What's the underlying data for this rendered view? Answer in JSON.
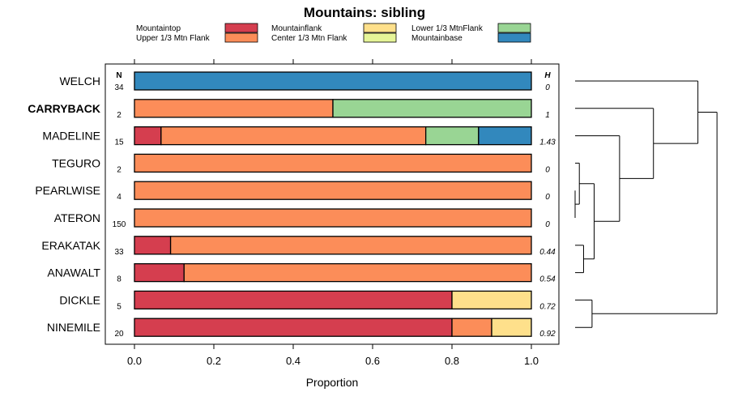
{
  "chart_data": {
    "type": "bar",
    "orientation": "horizontal",
    "stacked": true,
    "title": "Mountains: sibling",
    "xlabel": "Proportion",
    "xlim": [
      0,
      1
    ],
    "xticks": [
      "0.0",
      "0.2",
      "0.4",
      "0.6",
      "0.8",
      "1.0"
    ],
    "n_header": "N",
    "h_header": "H",
    "legend": [
      {
        "name": "Mountaintop",
        "color": "#d53e4f"
      },
      {
        "name": "Upper 1/3 Mtn Flank",
        "color": "#fc8d59"
      },
      {
        "name": "Mountainflank",
        "color": "#fee08b"
      },
      {
        "name": "Center 1/3 Mtn Flank",
        "color": "#e6f598"
      },
      {
        "name": "Lower 1/3 MtnFlank",
        "color": "#99d594"
      },
      {
        "name": "Mountainbase",
        "color": "#3288bd"
      }
    ],
    "categories": [
      "WELCH",
      "CARRYBACK",
      "MADELINE",
      "TEGURO",
      "PEARLWISE",
      "ATERON",
      "ERAKATAK",
      "ANAWALT",
      "DICKLE",
      "NINEMILE"
    ],
    "highlight": "CARRYBACK",
    "n": [
      "34",
      "2",
      "15",
      "2",
      "4",
      "150",
      "33",
      "8",
      "5",
      "20"
    ],
    "h": [
      "0",
      "1",
      "1.43",
      "0",
      "0",
      "0",
      "0.44",
      "0.54",
      "0.72",
      "0.92"
    ],
    "series": [
      {
        "name": "Mountaintop",
        "values": [
          0,
          0,
          0.067,
          0,
          0,
          0,
          0.091,
          0.125,
          0.8,
          0.8
        ]
      },
      {
        "name": "Upper 1/3 Mtn Flank",
        "values": [
          0,
          0.5,
          0.667,
          1,
          1,
          1,
          0.909,
          0.875,
          0,
          0.1
        ]
      },
      {
        "name": "Mountainflank",
        "values": [
          0,
          0,
          0,
          0,
          0,
          0,
          0,
          0,
          0.2,
          0.1
        ]
      },
      {
        "name": "Center 1/3 Mtn Flank",
        "values": [
          0,
          0,
          0,
          0,
          0,
          0,
          0,
          0,
          0,
          0
        ]
      },
      {
        "name": "Lower 1/3 MtnFlank",
        "values": [
          0,
          0.5,
          0.133,
          0,
          0,
          0,
          0,
          0,
          0,
          0
        ]
      },
      {
        "name": "Mountainbase",
        "values": [
          1,
          0,
          0.133,
          0,
          0,
          0,
          0,
          0,
          0,
          0
        ]
      }
    ],
    "dendrogram": {
      "type": "dendrogram",
      "merges": [
        {
          "a": "PEARLWISE",
          "b": "ATERON",
          "height": 0.0
        },
        {
          "a": "TEGURO",
          "b": "PEARLWISE+ATERON",
          "height": 0.02
        },
        {
          "a": "ERAKATAK",
          "b": "ANAWALT",
          "height": 0.04
        },
        {
          "a": "DICKLE",
          "b": "NINEMILE",
          "height": 0.08
        },
        {
          "a": "TEGURO+PEARLWISE+ATERON",
          "b": "ERAKATAK+ANAWALT",
          "height": 0.09
        },
        {
          "a": "MADELINE",
          "b": "TEGURO..ANAWALT",
          "height": 0.21
        },
        {
          "a": "CARRYBACK",
          "b": "MADELINE..ANAWALT",
          "height": 0.37
        },
        {
          "a": "WELCH",
          "b": "CARRYBACK..ANAWALT",
          "height": 0.58
        },
        {
          "a": "WELCH..ANAWALT",
          "b": "DICKLE+NINEMILE",
          "height": 0.67
        }
      ]
    }
  }
}
